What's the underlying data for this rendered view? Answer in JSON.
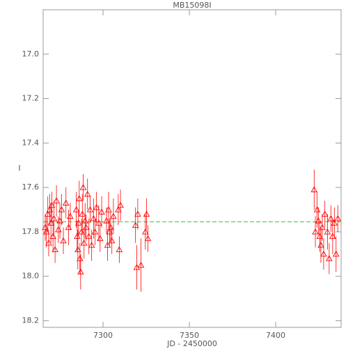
{
  "chart_data": {
    "type": "scatter",
    "title": "MB15098I",
    "x_label": "JD - 2450000",
    "y_label": "I",
    "xlim": [
      7265.3,
      7437.9
    ],
    "ylim": [
      16.8,
      18.23
    ],
    "y_inverted": true,
    "xticks": [
      7300,
      7350,
      7400
    ],
    "yticks": [
      {
        "value": 17,
        "label": "17.0"
      },
      17.2,
      17.4,
      17.6,
      17.8,
      {
        "value": 18,
        "label": "18.0"
      },
      18.2
    ],
    "reference_line": {
      "value": 17.755,
      "color": "#33cc33"
    },
    "series": [
      {
        "color": "#ff0000",
        "x": [
          7266.5,
          7267.2,
          7268.0,
          7268.5,
          7269.1,
          7269.8,
          7270.3,
          7271.0,
          7271.5,
          7272.2,
          7273.0,
          7274.1,
          7275.0,
          7276.0,
          7277.0,
          7278.5,
          7280.0,
          7281.0,
          7284.5,
          7285.0,
          7285.4,
          7285.8,
          7286.2,
          7286.6,
          7287.0,
          7287.5,
          7288.0,
          7288.5,
          7289.0,
          7289.6,
          7290.2,
          7291.0,
          7291.8,
          7292.5,
          7293.4,
          7294.5,
          7295.3,
          7296.2,
          7297.5,
          7298.3,
          7299.2,
          7302.0,
          7302.6,
          7303.2,
          7303.8,
          7304.4,
          7305.1,
          7306.0,
          7308.8,
          7309.4,
          7310.1,
          7318.8,
          7319.5,
          7320.1,
          7322.0,
          7324.5,
          7325.2,
          7326.0,
          7422.3,
          7423.0,
          7424.0,
          7424.8,
          7425.5,
          7426.2,
          7427.0,
          7427.8,
          7428.5,
          7430.0,
          7431.0,
          7432.0,
          7433.0,
          7434.0,
          7435.0,
          7436.0
        ],
        "values": [
          17.78,
          17.8,
          17.72,
          17.85,
          17.7,
          17.76,
          17.68,
          17.82,
          17.74,
          17.88,
          17.66,
          17.79,
          17.75,
          17.7,
          17.84,
          17.67,
          17.78,
          17.73,
          17.7,
          17.82,
          17.88,
          17.76,
          17.65,
          17.92,
          17.98,
          17.8,
          17.72,
          17.6,
          17.85,
          17.75,
          17.78,
          17.63,
          17.82,
          17.7,
          17.86,
          17.74,
          17.8,
          17.69,
          17.76,
          17.83,
          17.71,
          17.75,
          17.86,
          17.7,
          17.8,
          17.78,
          17.84,
          17.73,
          17.7,
          17.88,
          17.68,
          17.77,
          17.96,
          17.72,
          17.95,
          17.8,
          17.72,
          17.83,
          17.61,
          17.8,
          17.7,
          17.75,
          17.82,
          17.86,
          17.78,
          17.9,
          17.72,
          17.8,
          17.92,
          17.74,
          17.82,
          17.76,
          17.9,
          17.74
        ],
        "errors": [
          0.06,
          0.07,
          0.08,
          0.06,
          0.07,
          0.09,
          0.06,
          0.07,
          0.08,
          0.06,
          0.07,
          0.06,
          0.08,
          0.07,
          0.06,
          0.07,
          0.08,
          0.06,
          0.08,
          0.07,
          0.09,
          0.06,
          0.08,
          0.07,
          0.08,
          0.06,
          0.09,
          0.06,
          0.07,
          0.08,
          0.06,
          0.07,
          0.08,
          0.06,
          0.07,
          0.09,
          0.06,
          0.07,
          0.08,
          0.06,
          0.07,
          0.06,
          0.07,
          0.08,
          0.06,
          0.07,
          0.06,
          0.08,
          0.07,
          0.06,
          0.07,
          0.08,
          0.1,
          0.07,
          0.12,
          0.08,
          0.07,
          0.06,
          0.09,
          0.07,
          0.08,
          0.06,
          0.07,
          0.08,
          0.06,
          0.07,
          0.06,
          0.08,
          0.07,
          0.06,
          0.08,
          0.07,
          0.08,
          0.06
        ]
      }
    ]
  }
}
